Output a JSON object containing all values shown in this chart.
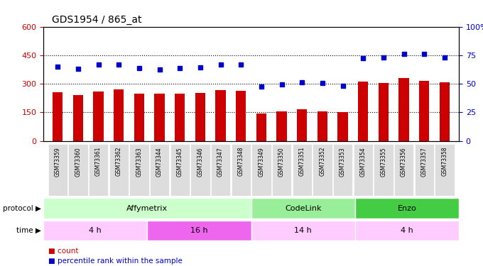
{
  "title": "GDS1954 / 865_at",
  "samples": [
    "GSM73359",
    "GSM73360",
    "GSM73361",
    "GSM73362",
    "GSM73363",
    "GSM73344",
    "GSM73345",
    "GSM73346",
    "GSM73347",
    "GSM73348",
    "GSM73349",
    "GSM73350",
    "GSM73351",
    "GSM73352",
    "GSM73353",
    "GSM73354",
    "GSM73355",
    "GSM73356",
    "GSM73357",
    "GSM73358"
  ],
  "counts": [
    255,
    240,
    258,
    270,
    248,
    248,
    248,
    253,
    268,
    262,
    145,
    155,
    168,
    157,
    150,
    310,
    303,
    330,
    315,
    308
  ],
  "percentiles": [
    390,
    378,
    400,
    402,
    382,
    375,
    382,
    385,
    402,
    400,
    285,
    298,
    308,
    305,
    290,
    435,
    440,
    455,
    455,
    440
  ],
  "bar_color": "#cc0000",
  "dot_color": "#0000cc",
  "left_ylim": [
    0,
    600
  ],
  "right_ylim": [
    0,
    100
  ],
  "left_yticks": [
    0,
    150,
    300,
    450,
    600
  ],
  "right_yticks": [
    0,
    25,
    50,
    75,
    100
  ],
  "left_ylabel_color": "#cc0000",
  "right_ylabel_color": "#0000cc",
  "protocol_groups": [
    {
      "label": "Affymetrix",
      "start": 0,
      "end": 10,
      "color": "#ccffcc"
    },
    {
      "label": "CodeLink",
      "start": 10,
      "end": 15,
      "color": "#99ee99"
    },
    {
      "label": "Enzo",
      "start": 15,
      "end": 20,
      "color": "#44cc44"
    }
  ],
  "time_groups": [
    {
      "label": "4 h",
      "start": 0,
      "end": 5,
      "color": "#ffccff"
    },
    {
      "label": "16 h",
      "start": 5,
      "end": 10,
      "color": "#ee66ee"
    },
    {
      "label": "14 h",
      "start": 10,
      "end": 15,
      "color": "#ffccff"
    },
    {
      "label": "4 h",
      "start": 15,
      "end": 20,
      "color": "#ffccff"
    }
  ],
  "legend_count_color": "#cc0000",
  "legend_pct_color": "#0000cc",
  "bg_color": "#ffffff",
  "tick_label_bg": "#dddddd"
}
